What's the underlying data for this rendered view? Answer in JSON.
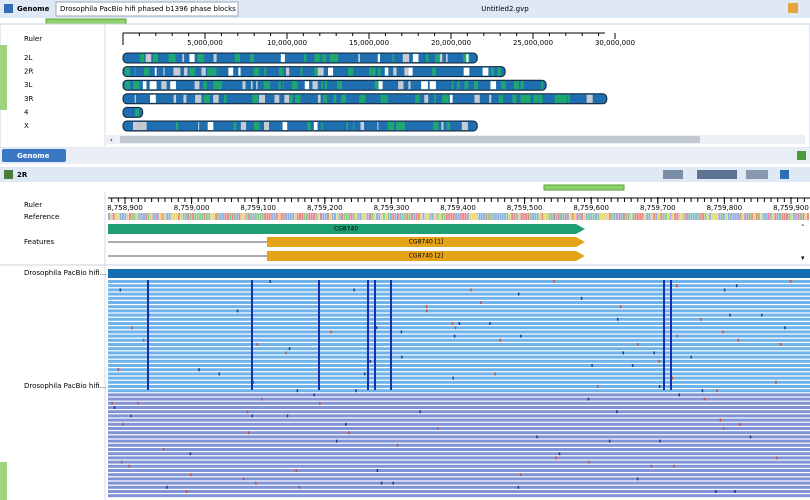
{
  "toolbar": {
    "view_label": "Genome",
    "dataset": "Drosophila PacBio hifi phased b1396 phase blocks",
    "file": "Untitled2.gvp"
  },
  "genome_panel": {
    "ruler_label": "Ruler",
    "ruler_ticks": [
      {
        "value": 5000000,
        "label": "5,000,000"
      },
      {
        "value": 10000000,
        "label": "10,000,000"
      },
      {
        "value": 15000000,
        "label": "15,000,000"
      },
      {
        "value": 20000000,
        "label": "20,000,000"
      },
      {
        "value": 25000000,
        "label": "25,000,000"
      },
      {
        "value": 30000000,
        "label": "30,000,000"
      }
    ],
    "chromosomes": [
      {
        "name": "2L",
        "length": 21600000
      },
      {
        "name": "2R",
        "length": 23300000
      },
      {
        "name": "3L",
        "length": 25800000
      },
      {
        "name": "3R",
        "length": 29500000
      },
      {
        "name": "4",
        "length": 1200000
      },
      {
        "name": "X",
        "length": 21600000
      }
    ]
  },
  "tab": "Genome",
  "detail_panel": {
    "title": "2R",
    "ruler_label": "Ruler",
    "reference_label": "Reference",
    "features_label": "Features",
    "ruler_ticks": [
      {
        "value": 8758900,
        "label": "8,758,900"
      },
      {
        "value": 8759000,
        "label": "8,759,000"
      },
      {
        "value": 8759100,
        "label": "8,759,100"
      },
      {
        "value": 8759200,
        "label": "8,759,200"
      },
      {
        "value": 8759300,
        "label": "8,759,300"
      },
      {
        "value": 8759400,
        "label": "8,759,400"
      },
      {
        "value": 8759500,
        "label": "8,759,500"
      },
      {
        "value": 8759600,
        "label": "8,759,600"
      },
      {
        "value": 8759700,
        "label": "8,759,700"
      },
      {
        "value": 8759800,
        "label": "8,759,800"
      },
      {
        "value": 8759900,
        "label": "8,759,900"
      }
    ],
    "features": [
      {
        "label": "CG8740"
      },
      {
        "label": "CG8740 [1]"
      },
      {
        "label": "CG8740 [2]"
      }
    ],
    "tracks": [
      "Drosophila PacBio hifi...",
      "Drosophila PacBio hifi..."
    ]
  }
}
